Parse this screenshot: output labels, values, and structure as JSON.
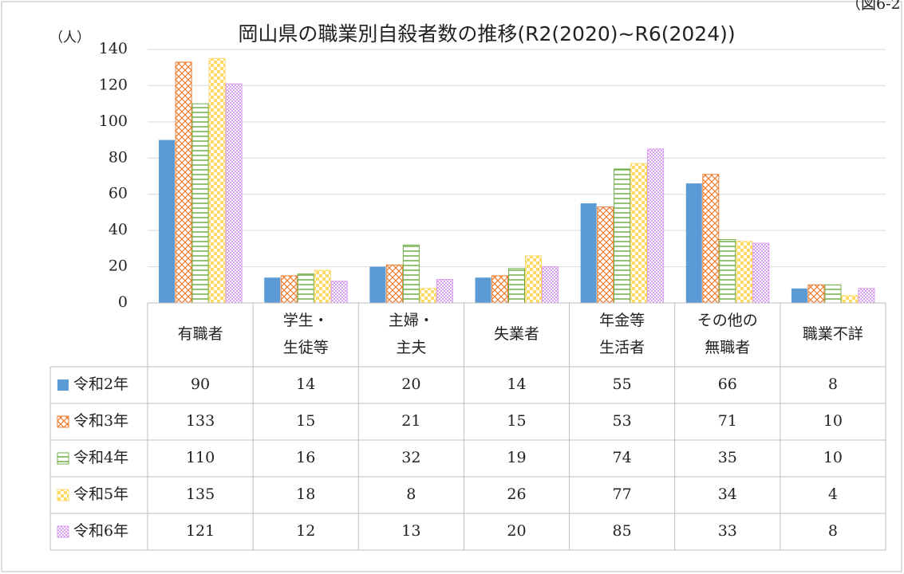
{
  "chart_data": {
    "type": "bar",
    "title": "岡山県の職業別自殺者数の推移(R2(2020)~R6(2024))",
    "figure_label": "（図6-2",
    "y_label": "（人）",
    "categories": [
      "有職者",
      "学生・\n生徒等",
      "主婦・\n主夫",
      "失業者",
      "年金等\n生活者",
      "その他の\n無職者",
      "職業不詳"
    ],
    "series": [
      {
        "name": "令和2年",
        "color": "#5b9bd5",
        "pattern": "solid",
        "values": [
          90,
          14,
          20,
          14,
          55,
          66,
          8
        ]
      },
      {
        "name": "令和3年",
        "color": "#ed7d31",
        "pattern": "diamond",
        "values": [
          133,
          15,
          21,
          15,
          53,
          71,
          10
        ]
      },
      {
        "name": "令和4年",
        "color": "#70ad47",
        "pattern": "hlines",
        "values": [
          110,
          16,
          32,
          19,
          74,
          35,
          10
        ]
      },
      {
        "name": "令和5年",
        "color": "#ffd966",
        "pattern": "checker",
        "values": [
          135,
          18,
          8,
          26,
          77,
          34,
          4
        ]
      },
      {
        "name": "令和6年",
        "color": "#d99cf0",
        "pattern": "dots",
        "values": [
          121,
          12,
          13,
          20,
          85,
          33,
          8
        ]
      }
    ],
    "ylim": [
      0,
      140
    ],
    "yticks": [
      0,
      20,
      40,
      60,
      80,
      100,
      120,
      140
    ],
    "grid": true
  }
}
